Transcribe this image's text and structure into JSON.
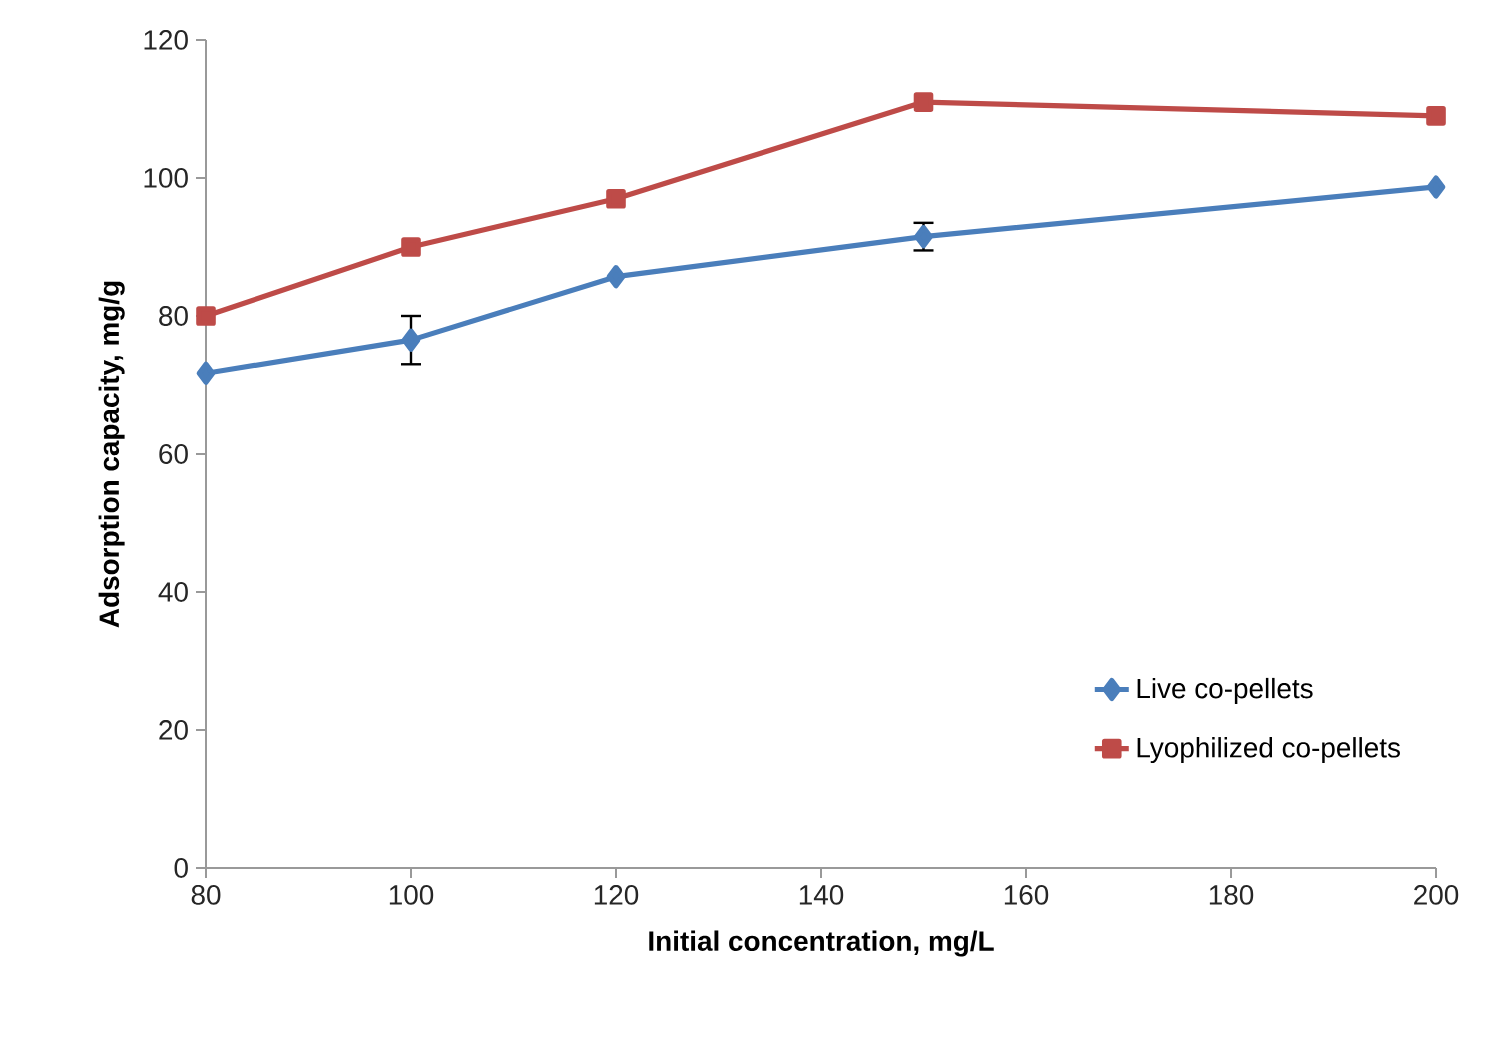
{
  "chart_data": {
    "type": "line",
    "xlabel": "Initial concentration, mg/L",
    "ylabel": "Adsorption capacity, mg/g",
    "x": [
      80,
      100,
      120,
      150,
      200
    ],
    "series": [
      {
        "name": "Live co-pellets",
        "color": "#4a7ebb",
        "marker": "diamond",
        "values": [
          71.7,
          76.5,
          85.7,
          91.5,
          98.7
        ],
        "errors": [
          null,
          3.5,
          null,
          2,
          null
        ]
      },
      {
        "name": "Lyophilized co-pellets",
        "color": "#be4b48",
        "marker": "square",
        "values": [
          80,
          90,
          97,
          111,
          109
        ]
      }
    ],
    "xlim": [
      80,
      200
    ],
    "xticks": [
      80,
      100,
      120,
      140,
      160,
      180,
      200
    ],
    "ylim": [
      0,
      120
    ],
    "yticks": [
      0,
      20,
      40,
      60,
      80,
      100,
      120
    ],
    "grid": false,
    "legend": "bottom right",
    "line_style": "solid"
  }
}
